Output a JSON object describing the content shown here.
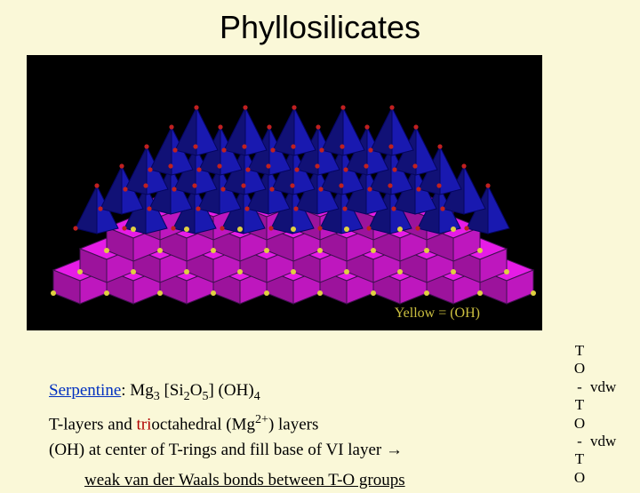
{
  "title": "Phyllosilicates",
  "diagram": {
    "background": "#000000",
    "tetra_color": "#1818a8",
    "octa_color": "#c818c8",
    "oxygen_color": "#c02020",
    "hydroxyl_color": "#e0d040",
    "label": "Yellow = (OH)",
    "label_color": "#ccc040",
    "rows_tetra": 5,
    "rows_octa": 4,
    "cols": 9
  },
  "body": {
    "serpentine": "Serpentine",
    "formula": "Mg₃ [Si₂O₅] (OH)₄",
    "line2_a": "T-layers and ",
    "line2_tri": "tri",
    "line2_b": "octahedral (Mg",
    "line2_sup": "2+",
    "line2_c": ") layers",
    "line3": "(OH) at center of T-rings and fill base of VI layer →",
    "line4": "weak van der Waals bonds between T-O groups"
  },
  "right": [
    {
      "l": "T",
      "r": ""
    },
    {
      "l": "O",
      "r": ""
    },
    {
      "l": "-",
      "r": "vdw"
    },
    {
      "l": "T",
      "r": ""
    },
    {
      "l": "O",
      "r": ""
    },
    {
      "l": "-",
      "r": "vdw"
    },
    {
      "l": "T",
      "r": ""
    },
    {
      "l": "O",
      "r": ""
    }
  ],
  "colors": {
    "bg": "#faf8d8",
    "serpentine": "#0030c0",
    "tri": "#b00000",
    "text": "#000000"
  }
}
